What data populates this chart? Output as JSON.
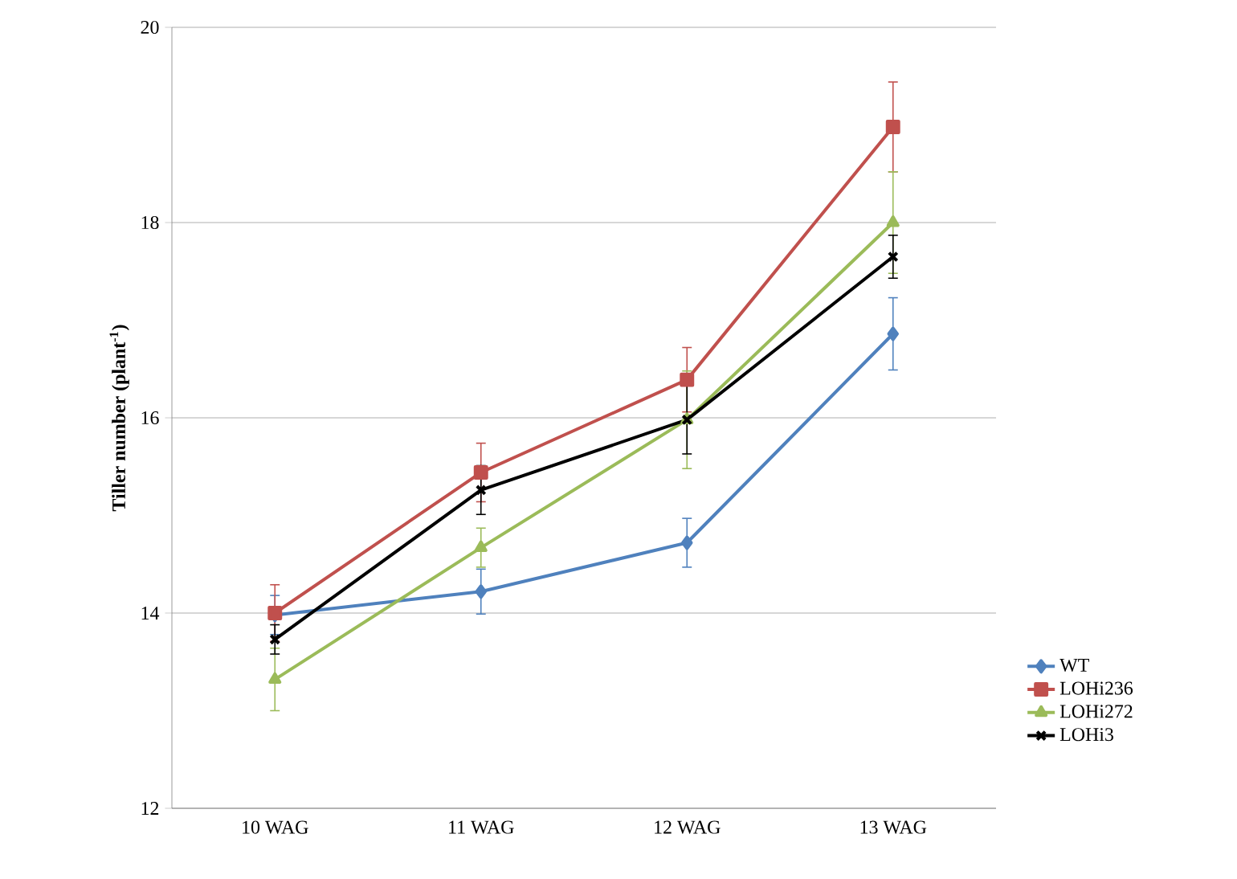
{
  "chart_data": {
    "type": "line",
    "ylabel": "Tiller number (plant$^{-1}$)",
    "categories": [
      "10 WAG",
      "11 WAG",
      "12 WAG",
      "13 WAG"
    ],
    "ylim": [
      12,
      20
    ],
    "yticks": [
      12,
      14,
      16,
      18,
      20
    ],
    "grid": "y",
    "legend": "bottom right",
    "series": [
      {
        "name": "WT",
        "color": "#4f81bd",
        "marker": "diamond",
        "values": [
          13.98,
          14.22,
          14.72,
          16.86
        ],
        "errors": [
          0.2,
          0.23,
          0.25,
          0.37
        ]
      },
      {
        "name": "LOHi236",
        "color": "#c0504d",
        "marker": "square",
        "values": [
          14.0,
          15.44,
          16.39,
          18.98
        ],
        "errors": [
          0.29,
          0.3,
          0.33,
          0.46
        ]
      },
      {
        "name": "LOHi272",
        "color": "#9bbb59",
        "marker": "triangle",
        "values": [
          13.32,
          14.67,
          15.98,
          18.0
        ],
        "errors": [
          0.32,
          0.2,
          0.5,
          0.52
        ]
      },
      {
        "name": "LOHi3",
        "color": "#000000",
        "marker": "cross",
        "values": [
          13.73,
          15.26,
          15.98,
          17.65
        ],
        "errors": [
          0.15,
          0.25,
          0.35,
          0.22
        ]
      }
    ]
  }
}
